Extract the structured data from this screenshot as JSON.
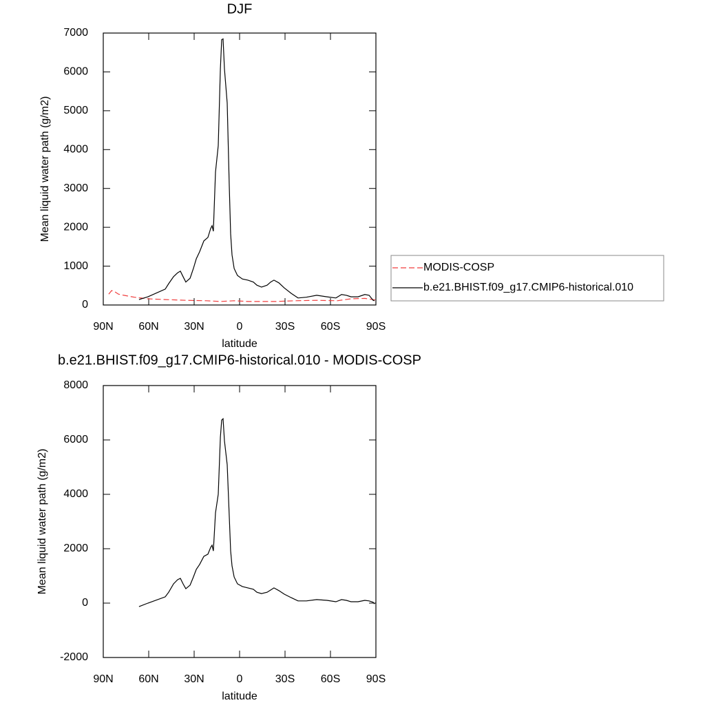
{
  "chart_data": [
    {
      "type": "line",
      "title": "DJF",
      "xlabel": "latitude",
      "ylabel": "Mean liquid water path (g/m2)",
      "xlim": [
        90,
        -90
      ],
      "xticks": [
        {
          "value": 90,
          "label": "90N"
        },
        {
          "value": 60,
          "label": "60N"
        },
        {
          "value": 30,
          "label": "30N"
        },
        0,
        {
          "value": -30,
          "label": "30S"
        },
        {
          "value": -60,
          "label": "60S"
        },
        {
          "value": -90,
          "label": "90S"
        }
      ],
      "ylim": [
        0,
        7000
      ],
      "yticks": [
        0,
        1000,
        2000,
        3000,
        4000,
        5000,
        6000,
        7000
      ],
      "legend": "right",
      "series": [
        {
          "name": "MODIS-COSP",
          "color": "#f03c3c",
          "dashed": true,
          "x": [
            86.4,
            84.5,
            82.7,
            80.0,
            76.4,
            69.5,
            60.5,
            49.1,
            35.5,
            22.0,
            12.7,
            3.6,
            -5.5,
            -23.6,
            -37.0,
            -50.9,
            -64.5,
            -73.6,
            -82.7,
            -90.0
          ],
          "values": [
            280,
            370,
            350,
            280,
            250,
            200,
            160,
            140,
            120,
            110,
            90,
            110,
            90,
            90,
            110,
            120,
            110,
            160,
            170,
            130
          ]
        },
        {
          "name": "b.e21.BHIST.f09_g17.CMIP6-historical.010",
          "color": "#000000",
          "dashed": false,
          "x": [
            66.4,
            60.5,
            49.1,
            46.8,
            43.6,
            40.9,
            39.1,
            37.3,
            35.5,
            32.7,
            30.5,
            28.6,
            26.4,
            23.6,
            20.9,
            19.1,
            18.2,
            17.3,
            15.9,
            14.1,
            12.7,
            11.8,
            10.9,
            10.0,
            8.2,
            6.8,
            5.9,
            5.0,
            3.6,
            1.4,
            -1.8,
            -5.5,
            -9.1,
            -11.4,
            -14.5,
            -18.2,
            -20.5,
            -22.7,
            -25.9,
            -29.5,
            -34.1,
            -38.6,
            -44.1,
            -50.9,
            -57.7,
            -63.6,
            -67.3,
            -70.5,
            -73.6,
            -78.2,
            -82.7,
            -85.5,
            -88.2,
            -89.1
          ],
          "values": [
            140,
            210,
            410,
            550,
            730,
            830,
            870,
            730,
            590,
            690,
            940,
            1190,
            1370,
            1650,
            1740,
            1970,
            2040,
            1900,
            3420,
            4100,
            6080,
            6830,
            6850,
            6080,
            5200,
            3070,
            1830,
            1290,
            940,
            760,
            670,
            640,
            590,
            510,
            460,
            510,
            590,
            640,
            570,
            440,
            300,
            180,
            200,
            250,
            210,
            180,
            270,
            250,
            210,
            210,
            270,
            250,
            120,
            110
          ]
        }
      ]
    },
    {
      "type": "line",
      "title": "b.e21.BHIST.f09_g17.CMIP6-historical.010 - MODIS-COSP",
      "xlabel": "latitude",
      "ylabel": "Mean liquid water path (g/m2)",
      "xlim": [
        90,
        -90
      ],
      "xticks": [
        {
          "value": 90,
          "label": "90N"
        },
        {
          "value": 60,
          "label": "60N"
        },
        {
          "value": 30,
          "label": "30N"
        },
        0,
        {
          "value": -30,
          "label": "30S"
        },
        {
          "value": -60,
          "label": "60S"
        },
        {
          "value": -90,
          "label": "90S"
        }
      ],
      "ylim": [
        -2000,
        8000
      ],
      "yticks": [
        -2000,
        0,
        2000,
        4000,
        6000,
        8000
      ],
      "series": [
        {
          "color": "#000000",
          "dashed": false,
          "x": [
            66.4,
            60.5,
            49.1,
            46.8,
            43.6,
            40.9,
            39.1,
            37.3,
            35.5,
            32.7,
            30.5,
            28.6,
            26.4,
            23.6,
            20.9,
            19.1,
            18.2,
            17.3,
            15.9,
            14.1,
            12.7,
            11.8,
            10.9,
            10.0,
            8.2,
            6.8,
            5.9,
            5.0,
            3.6,
            1.4,
            -1.8,
            -5.5,
            -9.1,
            -11.4,
            -14.5,
            -18.2,
            -20.5,
            -22.7,
            -25.9,
            -29.5,
            -34.1,
            -38.6,
            -44.1,
            -50.9,
            -57.7,
            -63.6,
            -67.3,
            -70.5,
            -73.6,
            -78.2,
            -82.7,
            -85.5,
            -88.2,
            -89.1
          ],
          "values": [
            -130,
            0,
            230,
            400,
            710,
            860,
            910,
            710,
            530,
            660,
            960,
            1240,
            1420,
            1720,
            1800,
            2050,
            2130,
            1920,
            3320,
            4000,
            6100,
            6730,
            6780,
            5970,
            5090,
            3190,
            1920,
            1370,
            960,
            710,
            610,
            560,
            510,
            400,
            350,
            400,
            480,
            560,
            460,
            330,
            200,
            80,
            80,
            130,
            100,
            50,
            130,
            100,
            50,
            50,
            100,
            80,
            30,
            -30
          ]
        }
      ]
    }
  ]
}
